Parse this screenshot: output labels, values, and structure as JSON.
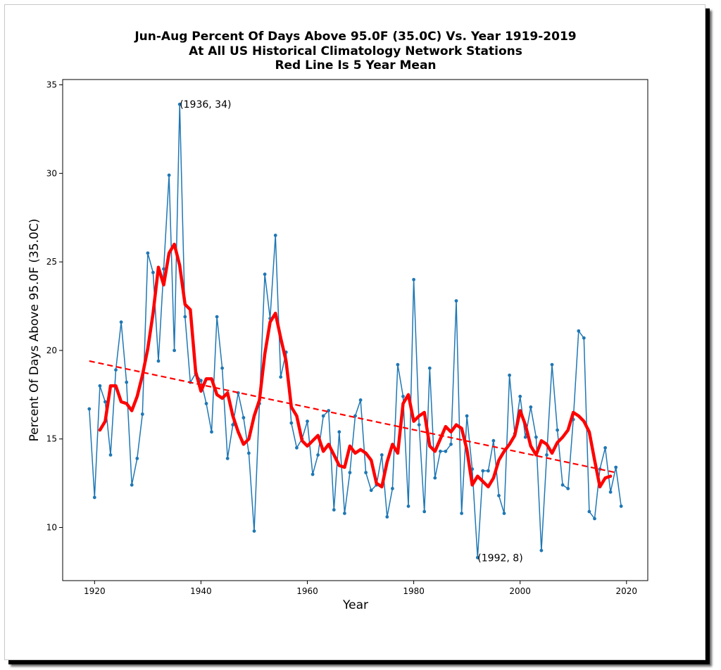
{
  "chart_data": {
    "type": "line",
    "title_lines": [
      "Jun-Aug Percent Of Days Above 95.0F (35.0C) Vs. Year 1919-2019",
      "At All US Historical Climatology Network Stations",
      "Red Line Is 5 Year Mean"
    ],
    "xlabel": "Year",
    "ylabel": "Percent Of Days Above 95.0F (35.0C)",
    "xlim": [
      1914,
      2024
    ],
    "ylim": [
      7.0,
      35.3
    ],
    "xticks": [
      1920,
      1940,
      1960,
      1980,
      2000,
      2020
    ],
    "yticks": [
      10,
      15,
      20,
      25,
      30,
      35
    ],
    "grid": false,
    "colors": {
      "annual": "#1f77b4",
      "mean": "#ff0000",
      "trend": "#ff0000"
    },
    "series": [
      {
        "style": "line-with-dots",
        "x": [
          1919,
          1920,
          1921,
          1922,
          1923,
          1924,
          1925,
          1926,
          1927,
          1928,
          1929,
          1930,
          1931,
          1932,
          1933,
          1934,
          1935,
          1936,
          1937,
          1938,
          1939,
          1940,
          1941,
          1942,
          1943,
          1944,
          1945,
          1946,
          1947,
          1948,
          1949,
          1950,
          1951,
          1952,
          1953,
          1954,
          1955,
          1956,
          1957,
          1958,
          1959,
          1960,
          1961,
          1962,
          1963,
          1964,
          1965,
          1966,
          1967,
          1968,
          1969,
          1970,
          1971,
          1972,
          1973,
          1974,
          1975,
          1976,
          1977,
          1978,
          1979,
          1980,
          1981,
          1982,
          1983,
          1984,
          1985,
          1986,
          1987,
          1988,
          1989,
          1990,
          1991,
          1992,
          1993,
          1994,
          1995,
          1996,
          1997,
          1998,
          1999,
          2000,
          2001,
          2002,
          2003,
          2004,
          2005,
          2006,
          2007,
          2008,
          2009,
          2010,
          2011,
          2012,
          2013,
          2014,
          2015,
          2016,
          2017,
          2018,
          2019
        ],
        "y": [
          16.7,
          11.7,
          18.0,
          17.1,
          14.1,
          18.9,
          21.6,
          18.2,
          12.4,
          13.9,
          16.4,
          25.5,
          24.4,
          19.4,
          24.6,
          29.9,
          20.0,
          33.9,
          21.9,
          18.2,
          18.7,
          18.3,
          17.0,
          15.4,
          21.9,
          19.0,
          13.9,
          15.8,
          17.6,
          16.2,
          14.2,
          9.8,
          17.0,
          24.3,
          21.8,
          26.5,
          18.5,
          19.9,
          15.9,
          14.5,
          15.0,
          16.0,
          13.0,
          14.1,
          16.3,
          16.6,
          11.0,
          15.4,
          10.8,
          13.1,
          16.3,
          17.2,
          13.1,
          12.1,
          12.4,
          14.1,
          10.6,
          12.2,
          19.2,
          17.4,
          11.2,
          24.0,
          15.8,
          10.9,
          19.0,
          12.8,
          14.3,
          14.3,
          14.7,
          22.8,
          10.8,
          16.3,
          13.3,
          8.3,
          13.2,
          13.2,
          14.9,
          11.8,
          10.8,
          18.6,
          15.3,
          17.4,
          15.1,
          16.8,
          15.1,
          8.7,
          14.1,
          19.2,
          15.5,
          12.4,
          12.2,
          16.1,
          21.1,
          20.7,
          10.9,
          10.5,
          13.3,
          14.5,
          12.0,
          13.4,
          11.2
        ]
      },
      {
        "style": "thick-line",
        "x": [
          1921,
          1922,
          1923,
          1924,
          1925,
          1926,
          1927,
          1928,
          1929,
          1930,
          1931,
          1932,
          1933,
          1934,
          1935,
          1936,
          1937,
          1938,
          1939,
          1940,
          1941,
          1942,
          1943,
          1944,
          1945,
          1946,
          1947,
          1948,
          1949,
          1950,
          1951,
          1952,
          1953,
          1954,
          1955,
          1956,
          1957,
          1958,
          1959,
          1960,
          1961,
          1962,
          1963,
          1964,
          1965,
          1966,
          1967,
          1968,
          1969,
          1970,
          1971,
          1972,
          1973,
          1974,
          1975,
          1976,
          1977,
          1978,
          1979,
          1980,
          1981,
          1982,
          1983,
          1984,
          1985,
          1986,
          1987,
          1988,
          1989,
          1990,
          1991,
          1992,
          1993,
          1994,
          1995,
          1996,
          1997,
          1998,
          1999,
          2000,
          2001,
          2002,
          2003,
          2004,
          2005,
          2006,
          2007,
          2008,
          2009,
          2010,
          2011,
          2012,
          2013,
          2014,
          2015,
          2016,
          2017
        ],
        "y": [
          15.5,
          16.0,
          18.0,
          18.0,
          17.1,
          17.0,
          16.6,
          17.4,
          18.6,
          20.1,
          22.1,
          24.7,
          23.7,
          25.5,
          26.0,
          24.8,
          22.6,
          22.3,
          18.8,
          17.7,
          18.4,
          18.4,
          17.5,
          17.3,
          17.6,
          16.3,
          15.4,
          14.7,
          15.0,
          16.3,
          17.2,
          19.8,
          21.6,
          22.1,
          20.7,
          19.4,
          16.8,
          16.3,
          14.9,
          14.6,
          14.9,
          15.2,
          14.3,
          14.7,
          14.1,
          13.5,
          13.4,
          14.6,
          14.2,
          14.4,
          14.2,
          13.8,
          12.5,
          12.3,
          13.7,
          14.7,
          14.2,
          17.0,
          17.5,
          16.0,
          16.3,
          16.5,
          14.6,
          14.3,
          15.0,
          15.7,
          15.4,
          15.8,
          15.6,
          14.4,
          12.4,
          12.9,
          12.6,
          12.3,
          12.8,
          13.8,
          14.3,
          14.7,
          15.2,
          16.6,
          15.8,
          14.6,
          14.1,
          14.9,
          14.7,
          14.2,
          14.8,
          15.1,
          15.5,
          16.5,
          16.3,
          16.0,
          15.4,
          13.8,
          12.3,
          12.8,
          12.9
        ]
      },
      {
        "style": "dashed",
        "x": [
          1919,
          2018
        ],
        "y": [
          19.4,
          13.1
        ]
      }
    ],
    "annotations": [
      {
        "text": "(1936, 34)",
        "x": 1936,
        "y": 33.9
      },
      {
        "text": "(1992, 8)",
        "x": 1992,
        "y": 8.3
      }
    ]
  }
}
